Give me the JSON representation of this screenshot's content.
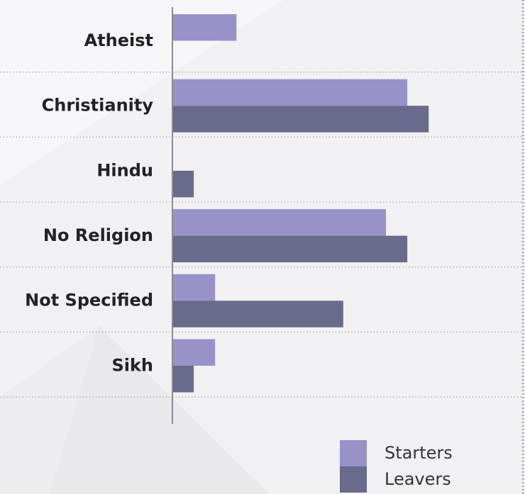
{
  "chart_data": {
    "type": "bar",
    "orientation": "horizontal",
    "categories": [
      "Atheist",
      "Christianity",
      "Hindu",
      "No Religion",
      "Not Specified",
      "Sikh"
    ],
    "series": [
      {
        "name": "Starters",
        "values": [
          3,
          11,
          0,
          10,
          2,
          2
        ]
      },
      {
        "name": "Leavers",
        "values": [
          0,
          12,
          1,
          11,
          8,
          1
        ]
      }
    ],
    "xlim": [
      0,
      16
    ],
    "grid": "dotted horizontal separators",
    "legend_position": "bottom-right",
    "colors": {
      "Starters": "#9892c8",
      "Leavers": "#6a6a8c",
      "axis": "#8a8a96",
      "grid": "#a8a8b8",
      "right_border": "#a89cd0"
    }
  }
}
